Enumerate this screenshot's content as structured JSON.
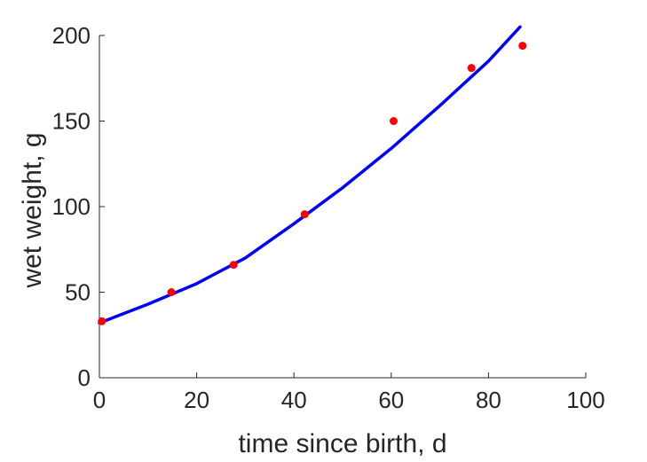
{
  "chart_data": {
    "type": "scatter",
    "title": "",
    "xlabel": "time since birth, d",
    "ylabel": "wet weight, g",
    "xlim": [
      0,
      100
    ],
    "ylim": [
      0,
      200
    ],
    "xticks": [
      "0",
      "20",
      "40",
      "60",
      "80",
      "100"
    ],
    "yticks": [
      "0",
      "50",
      "100",
      "150",
      "200"
    ],
    "grid": false,
    "legend": "none",
    "series": [
      {
        "kind": "points",
        "color": "#ff0000",
        "x": [
          0.5,
          14.8,
          27.6,
          42.2,
          60.5,
          76.5,
          87.0
        ],
        "y": [
          33,
          50,
          66,
          95.5,
          150,
          181,
          194
        ]
      },
      {
        "kind": "fit-line",
        "color": "#0000ff",
        "x": [
          0,
          10,
          20,
          30,
          40,
          50,
          60,
          70,
          80,
          86.5
        ],
        "y": [
          32,
          43,
          55,
          70,
          90,
          111,
          134,
          159,
          185,
          205
        ]
      }
    ]
  }
}
